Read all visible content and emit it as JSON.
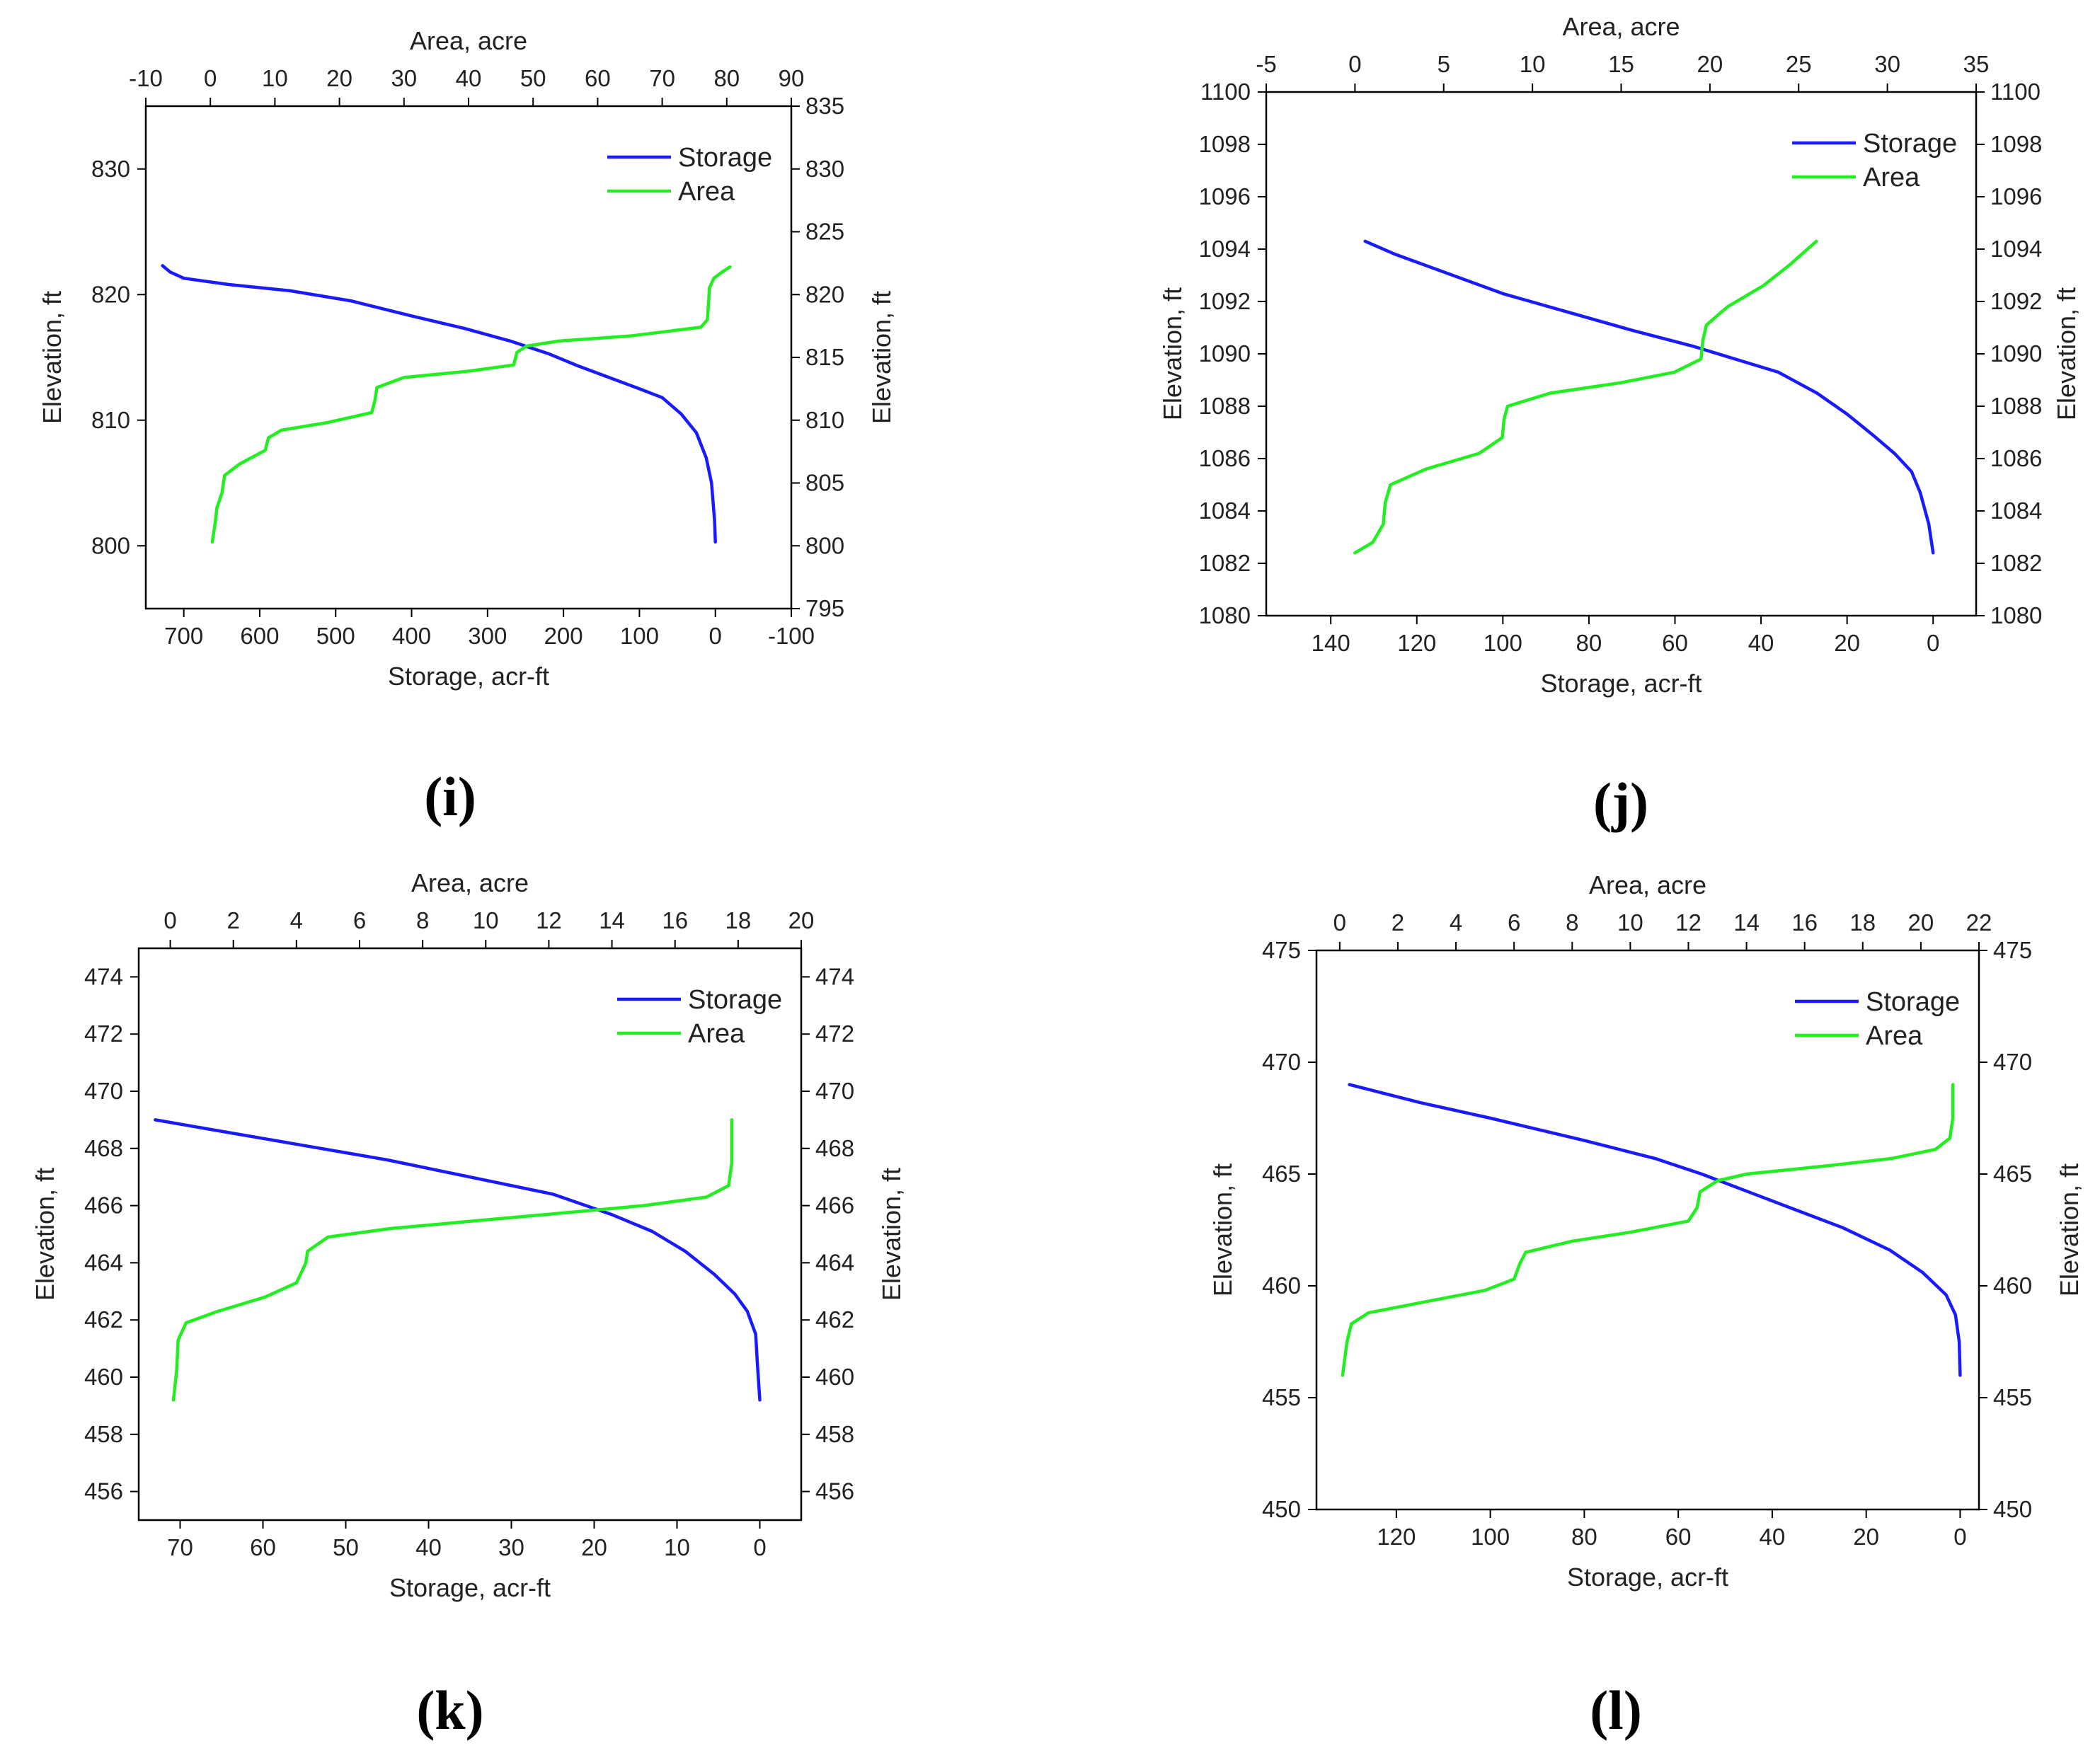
{
  "figure": {
    "panel_labels": [
      "(i)",
      "(j)",
      "(k)",
      "(l)"
    ]
  },
  "chart_data": [
    {
      "type": "line",
      "panel": "(i)",
      "top_axis": {
        "label": "Area, acre",
        "range": [
          -10,
          90
        ],
        "ticks": [
          -10,
          0,
          10,
          20,
          30,
          40,
          50,
          60,
          70,
          80,
          90
        ]
      },
      "bottom_axis": {
        "label": "Storage, acr-ft",
        "range": [
          750,
          -100
        ],
        "reversed": true,
        "ticks": [
          700,
          600,
          500,
          400,
          300,
          200,
          100,
          0,
          -100
        ]
      },
      "left_axis": {
        "label": "Elevation, ft",
        "range": [
          795,
          835
        ],
        "ticks": [
          800,
          810,
          820,
          830
        ]
      },
      "right_axis": {
        "label": "Elevation, ft",
        "range": [
          795,
          835
        ],
        "ticks": [
          795,
          800,
          805,
          810,
          815,
          820,
          825,
          830,
          835
        ]
      },
      "legend": {
        "position": "top-right",
        "entries": [
          "Storage",
          "Area"
        ]
      },
      "series": [
        {
          "name": "Storage",
          "axis": "bottom",
          "color": "#1a1aff",
          "points": [
            [
              0,
              800.3
            ],
            [
              1,
              802
            ],
            [
              5,
              805
            ],
            [
              12,
              807
            ],
            [
              25,
              809
            ],
            [
              45,
              810.5
            ],
            [
              70,
              811.8
            ],
            [
              100,
              812.5
            ],
            [
              140,
              813.4
            ],
            [
              180,
              814.3
            ],
            [
              220,
              815.3
            ],
            [
              270,
              816.3
            ],
            [
              330,
              817.3
            ],
            [
              400,
              818.3
            ],
            [
              480,
              819.5
            ],
            [
              560,
              820.3
            ],
            [
              640,
              820.8
            ],
            [
              700,
              821.3
            ],
            [
              718,
              821.8
            ],
            [
              728,
              822.3
            ]
          ]
        },
        {
          "name": "Area",
          "axis": "top",
          "color": "#22ee22",
          "points": [
            [
              0.3,
              800.3
            ],
            [
              0.8,
              802
            ],
            [
              1,
              803
            ],
            [
              1.8,
              804.2
            ],
            [
              2.2,
              805.6
            ],
            [
              4.5,
              806.5
            ],
            [
              8.5,
              807.6
            ],
            [
              9,
              808.6
            ],
            [
              11,
              809.2
            ],
            [
              18,
              809.8
            ],
            [
              25,
              810.6
            ],
            [
              25.5,
              811.6
            ],
            [
              25.8,
              812.6
            ],
            [
              30,
              813.4
            ],
            [
              40,
              813.9
            ],
            [
              47,
              814.4
            ],
            [
              47.5,
              815.4
            ],
            [
              49,
              815.9
            ],
            [
              54,
              816.3
            ],
            [
              65,
              816.7
            ],
            [
              76,
              817.4
            ],
            [
              77,
              818
            ],
            [
              77.2,
              819.5
            ],
            [
              77.3,
              820.5
            ],
            [
              78,
              821.3
            ],
            [
              79.3,
              821.8
            ],
            [
              80.5,
              822.2
            ]
          ]
        }
      ]
    },
    {
      "type": "line",
      "panel": "(j)",
      "top_axis": {
        "label": "Area, acre",
        "range": [
          -5,
          35
        ],
        "ticks": [
          -5,
          0,
          5,
          10,
          15,
          20,
          25,
          30,
          35
        ]
      },
      "bottom_axis": {
        "label": "Storage, acr-ft",
        "range": [
          155,
          -10
        ],
        "reversed": true,
        "ticks": [
          140,
          120,
          100,
          80,
          60,
          40,
          20,
          0
        ]
      },
      "left_axis": {
        "label": "Elevation, ft",
        "range": [
          1080,
          1100
        ],
        "ticks": [
          1080,
          1082,
          1084,
          1086,
          1088,
          1090,
          1092,
          1094,
          1096,
          1098,
          1100
        ]
      },
      "right_axis": {
        "label": "Elevation, ft",
        "range": [
          1080,
          1100
        ],
        "ticks": [
          1080,
          1082,
          1084,
          1086,
          1088,
          1090,
          1092,
          1094,
          1096,
          1098,
          1100
        ]
      },
      "legend": {
        "position": "top-right",
        "entries": [
          "Storage",
          "Area"
        ]
      },
      "series": [
        {
          "name": "Storage",
          "axis": "bottom",
          "color": "#1a1aff",
          "points": [
            [
              0,
              1082.4
            ],
            [
              1,
              1083.5
            ],
            [
              3,
              1084.7
            ],
            [
              5,
              1085.5
            ],
            [
              9,
              1086.2
            ],
            [
              14,
              1086.9
            ],
            [
              20,
              1087.7
            ],
            [
              27,
              1088.5
            ],
            [
              36,
              1089.3
            ],
            [
              46,
              1089.8
            ],
            [
              56,
              1090.3
            ],
            [
              70,
              1090.9
            ],
            [
              85,
              1091.6
            ],
            [
              100,
              1092.3
            ],
            [
              115,
              1093.2
            ],
            [
              125,
              1093.8
            ],
            [
              132,
              1094.3
            ]
          ]
        },
        {
          "name": "Area",
          "axis": "top",
          "color": "#22ee22",
          "points": [
            [
              0,
              1082.4
            ],
            [
              1,
              1082.8
            ],
            [
              1.6,
              1083.5
            ],
            [
              1.7,
              1084.3
            ],
            [
              2,
              1085
            ],
            [
              4,
              1085.6
            ],
            [
              7,
              1086.2
            ],
            [
              8.3,
              1086.8
            ],
            [
              8.4,
              1087.5
            ],
            [
              8.6,
              1088
            ],
            [
              11,
              1088.5
            ],
            [
              15,
              1088.9
            ],
            [
              18,
              1089.3
            ],
            [
              19.5,
              1089.8
            ],
            [
              19.6,
              1090.5
            ],
            [
              19.8,
              1091.1
            ],
            [
              21,
              1091.8
            ],
            [
              23,
              1092.6
            ],
            [
              24.5,
              1093.4
            ],
            [
              26,
              1094.3
            ]
          ]
        }
      ]
    },
    {
      "type": "line",
      "panel": "(k)",
      "top_axis": {
        "label": "Area, acre",
        "range": [
          -1,
          20
        ],
        "ticks": [
          0,
          2,
          4,
          6,
          8,
          10,
          12,
          14,
          16,
          18,
          20
        ]
      },
      "bottom_axis": {
        "label": "Storage, acr-ft",
        "range": [
          75,
          -5
        ],
        "reversed": true,
        "ticks": [
          70,
          60,
          50,
          40,
          30,
          20,
          10,
          0
        ]
      },
      "left_axis": {
        "label": "Elevation, ft",
        "range": [
          455,
          475
        ],
        "ticks": [
          456,
          458,
          460,
          462,
          464,
          466,
          468,
          470,
          472,
          474
        ]
      },
      "right_axis": {
        "label": "Elevation, ft",
        "range": [
          455,
          475
        ],
        "ticks": [
          456,
          458,
          460,
          462,
          464,
          466,
          468,
          470,
          472,
          474
        ]
      },
      "legend": {
        "position": "top-right",
        "entries": [
          "Storage",
          "Area"
        ]
      },
      "series": [
        {
          "name": "Storage",
          "axis": "bottom",
          "color": "#1a1aff",
          "points": [
            [
              0,
              459.2
            ],
            [
              0.3,
              460.5
            ],
            [
              0.5,
              461.5
            ],
            [
              1.5,
              462.3
            ],
            [
              3,
              462.9
            ],
            [
              5.5,
              463.6
            ],
            [
              9,
              464.4
            ],
            [
              13,
              465.1
            ],
            [
              18,
              465.7
            ],
            [
              25,
              466.4
            ],
            [
              35,
              467
            ],
            [
              45,
              467.6
            ],
            [
              55,
              468.1
            ],
            [
              65,
              468.6
            ],
            [
              73,
              469
            ]
          ]
        },
        {
          "name": "Area",
          "axis": "top",
          "color": "#22ee22",
          "points": [
            [
              0.1,
              459.2
            ],
            [
              0.2,
              460.2
            ],
            [
              0.25,
              461.3
            ],
            [
              0.5,
              461.9
            ],
            [
              1.5,
              462.3
            ],
            [
              3,
              462.8
            ],
            [
              4,
              463.3
            ],
            [
              4.3,
              464
            ],
            [
              4.35,
              464.4
            ],
            [
              5,
              464.9
            ],
            [
              7,
              465.2
            ],
            [
              10,
              465.5
            ],
            [
              13,
              465.8
            ],
            [
              15,
              466
            ],
            [
              17,
              466.3
            ],
            [
              17.7,
              466.7
            ],
            [
              17.8,
              467.5
            ],
            [
              17.8,
              469
            ]
          ]
        }
      ]
    },
    {
      "type": "line",
      "panel": "(l)",
      "top_axis": {
        "label": "Area, acre",
        "range": [
          -0.8,
          22
        ],
        "ticks": [
          0,
          2,
          4,
          6,
          8,
          10,
          12,
          14,
          16,
          18,
          20,
          22
        ]
      },
      "bottom_axis": {
        "label": "Storage, acr-ft",
        "range": [
          137,
          -4
        ],
        "reversed": true,
        "ticks": [
          120,
          100,
          80,
          60,
          40,
          20,
          0
        ]
      },
      "left_axis": {
        "label": "Elevation, ft",
        "range": [
          450,
          475
        ],
        "ticks": [
          450,
          455,
          460,
          465,
          470,
          475
        ]
      },
      "right_axis": {
        "label": "Elevation, ft",
        "range": [
          450,
          475
        ],
        "ticks": [
          450,
          455,
          460,
          465,
          470,
          475
        ]
      },
      "legend": {
        "position": "top-right",
        "entries": [
          "Storage",
          "Area"
        ]
      },
      "series": [
        {
          "name": "Storage",
          "axis": "bottom",
          "color": "#1a1aff",
          "points": [
            [
              0,
              456
            ],
            [
              0.2,
              457.5
            ],
            [
              1,
              458.7
            ],
            [
              3,
              459.6
            ],
            [
              8,
              460.6
            ],
            [
              15,
              461.6
            ],
            [
              25,
              462.6
            ],
            [
              35,
              463.4
            ],
            [
              45,
              464.2
            ],
            [
              55,
              465
            ],
            [
              65,
              465.7
            ],
            [
              80,
              466.5
            ],
            [
              100,
              467.5
            ],
            [
              115,
              468.2
            ],
            [
              130,
              469
            ]
          ]
        },
        {
          "name": "Area",
          "axis": "top",
          "color": "#22ee22",
          "points": [
            [
              0.1,
              456
            ],
            [
              0.25,
              457.5
            ],
            [
              0.4,
              458.3
            ],
            [
              1,
              458.8
            ],
            [
              3,
              459.3
            ],
            [
              5,
              459.8
            ],
            [
              6,
              460.3
            ],
            [
              6.2,
              461
            ],
            [
              6.4,
              461.5
            ],
            [
              8,
              462
            ],
            [
              10,
              462.4
            ],
            [
              12,
              462.9
            ],
            [
              12.3,
              463.5
            ],
            [
              12.4,
              464.2
            ],
            [
              13,
              464.7
            ],
            [
              14,
              465
            ],
            [
              17,
              465.4
            ],
            [
              19,
              465.7
            ],
            [
              20.5,
              466.1
            ],
            [
              21,
              466.6
            ],
            [
              21.1,
              467.5
            ],
            [
              21.1,
              469
            ]
          ]
        }
      ]
    }
  ]
}
